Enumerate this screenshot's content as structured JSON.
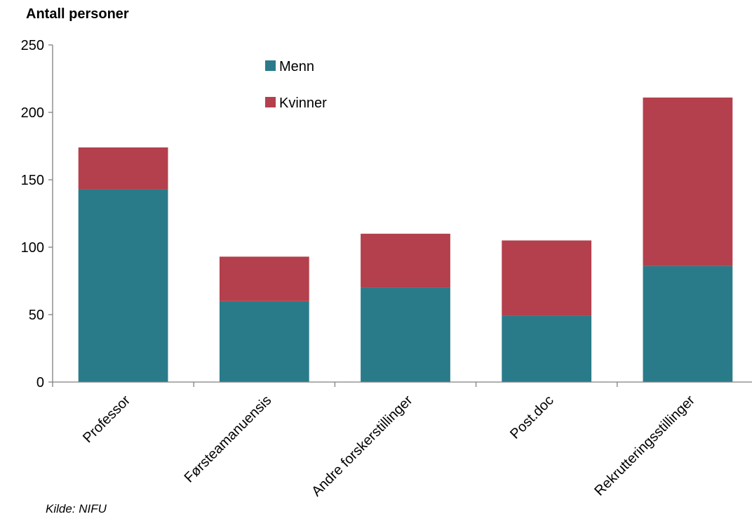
{
  "chart_data": {
    "type": "bar",
    "stacked": true,
    "ylabel": "Antall personer",
    "xlabel": "",
    "ylim": [
      0,
      250
    ],
    "yticks": [
      0,
      50,
      100,
      150,
      200,
      250
    ],
    "categories": [
      "Professor",
      "Førsteamanuensis",
      "Andre forskerstillinger",
      "Post.doc",
      "Rekrutteringsstillinger"
    ],
    "series": [
      {
        "name": "Menn",
        "color": "#2a7b8a",
        "values": [
          143,
          60,
          70,
          49,
          86
        ]
      },
      {
        "name": "Kvinner",
        "color": "#b3404c",
        "values": [
          31,
          33,
          40,
          56,
          125
        ]
      }
    ],
    "grid": false,
    "legend_position": "top-center",
    "source": "Kilde: NIFU"
  }
}
